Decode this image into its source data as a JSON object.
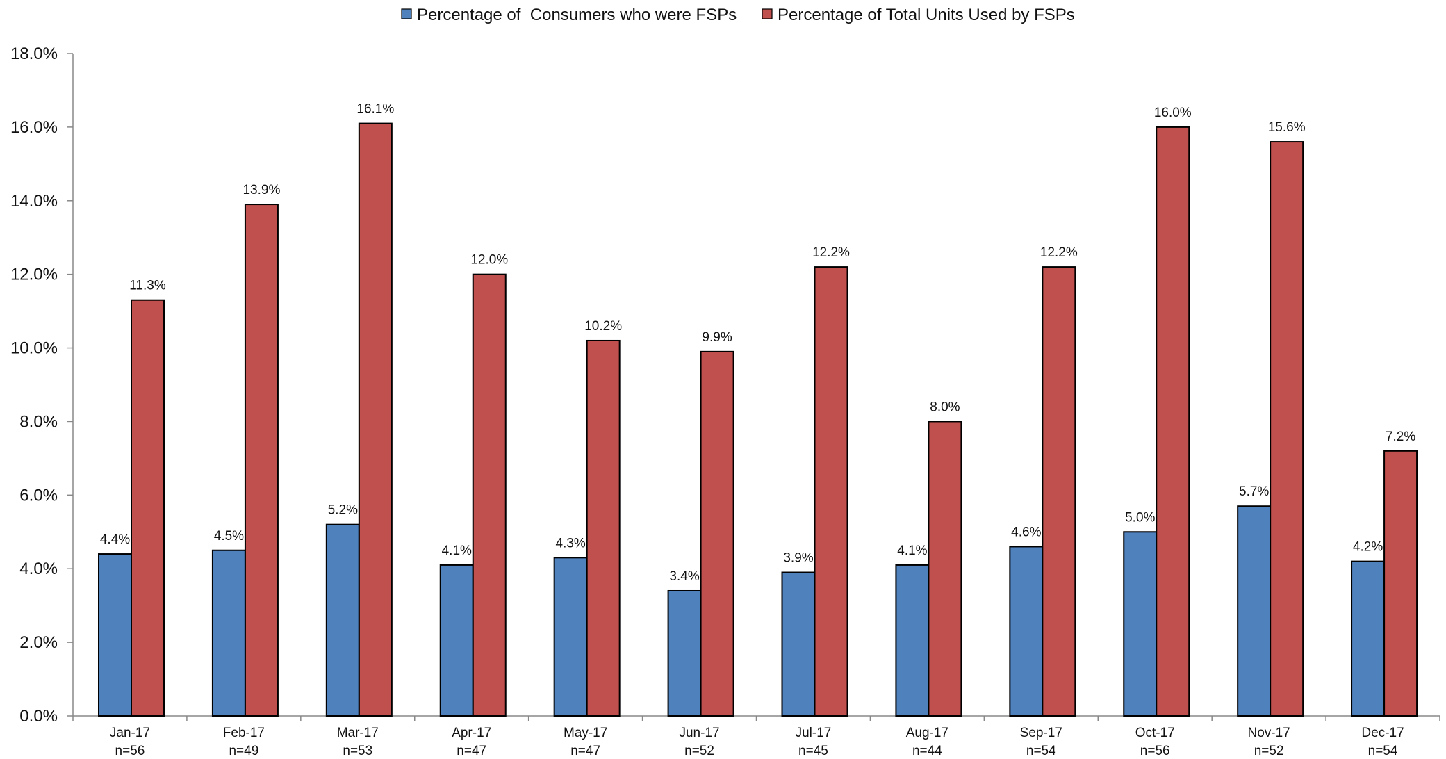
{
  "chart_data": {
    "type": "bar",
    "categories": [
      "Jan-17",
      "Feb-17",
      "Mar-17",
      "Apr-17",
      "May-17",
      "Jun-17",
      "Jul-17",
      "Aug-17",
      "Sep-17",
      "Oct-17",
      "Nov-17",
      "Dec-17"
    ],
    "category_sublabels": [
      "n=56",
      "n=49",
      "n=53",
      "n=47",
      "n=47",
      "n=52",
      "n=45",
      "n=44",
      "n=54",
      "n=56",
      "n=52",
      "n=54"
    ],
    "series": [
      {
        "name": "Percentage of  Consumers who were FSPs",
        "color": "#4F81BD",
        "values": [
          4.4,
          4.5,
          5.2,
          4.1,
          4.3,
          3.4,
          3.9,
          4.1,
          4.6,
          5.0,
          5.7,
          4.2
        ],
        "labels": [
          "4.4%",
          "4.5%",
          "5.2%",
          "4.1%",
          "4.3%",
          "3.4%",
          "3.9%",
          "4.1%",
          "4.6%",
          "5.0%",
          "5.7%",
          "4.2%"
        ]
      },
      {
        "name": "Percentage of Total Units Used by FSPs",
        "color": "#C0504D",
        "values": [
          11.3,
          13.9,
          16.1,
          12.0,
          10.2,
          9.9,
          12.2,
          8.0,
          12.2,
          16.0,
          15.6,
          7.2
        ],
        "labels": [
          "11.3%",
          "13.9%",
          "16.1%",
          "12.0%",
          "10.2%",
          "9.9%",
          "12.2%",
          "8.0%",
          "12.2%",
          "16.0%",
          "15.6%",
          "7.2%"
        ]
      }
    ],
    "y_ticks": [
      "0.0%",
      "2.0%",
      "4.0%",
      "6.0%",
      "8.0%",
      "10.0%",
      "12.0%",
      "14.0%",
      "16.0%",
      "18.0%"
    ],
    "ylim": [
      0,
      18
    ],
    "y_tick_step": 2,
    "grid": false,
    "legend_position": "top-center",
    "title": "",
    "xlabel": "",
    "ylabel": ""
  }
}
